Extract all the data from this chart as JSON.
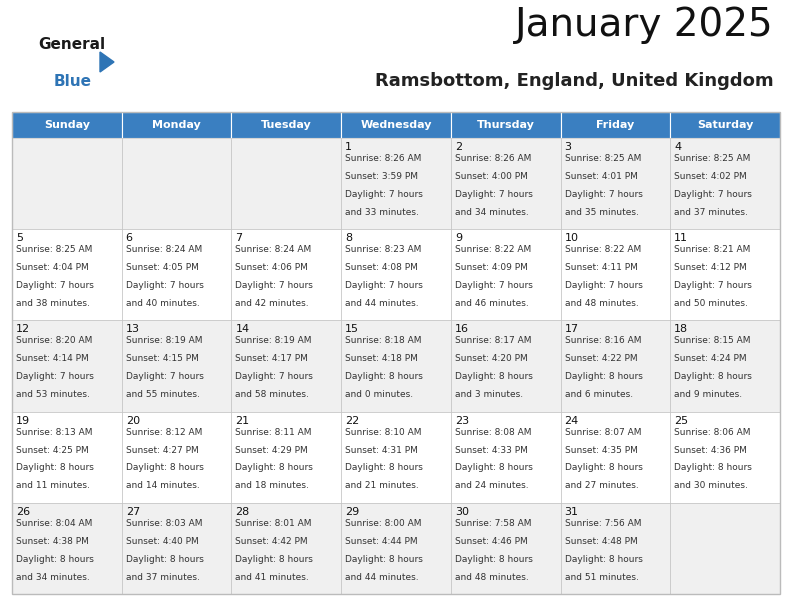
{
  "title": "January 2025",
  "subtitle": "Ramsbottom, England, United Kingdom",
  "header_color": "#3a7fc1",
  "header_text_color": "#ffffff",
  "cell_bg_even": "#f0f0f0",
  "cell_bg_odd": "#ffffff",
  "border_color": "#bbbbbb",
  "days_of_week": [
    "Sunday",
    "Monday",
    "Tuesday",
    "Wednesday",
    "Thursday",
    "Friday",
    "Saturday"
  ],
  "weeks": [
    {
      "days": [
        {
          "date": "",
          "sunrise": "",
          "sunset": "",
          "daylight": ""
        },
        {
          "date": "",
          "sunrise": "",
          "sunset": "",
          "daylight": ""
        },
        {
          "date": "",
          "sunrise": "",
          "sunset": "",
          "daylight": ""
        },
        {
          "date": "1",
          "sunrise": "8:26 AM",
          "sunset": "3:59 PM",
          "daylight": "7 hours and 33 minutes."
        },
        {
          "date": "2",
          "sunrise": "8:26 AM",
          "sunset": "4:00 PM",
          "daylight": "7 hours and 34 minutes."
        },
        {
          "date": "3",
          "sunrise": "8:25 AM",
          "sunset": "4:01 PM",
          "daylight": "7 hours and 35 minutes."
        },
        {
          "date": "4",
          "sunrise": "8:25 AM",
          "sunset": "4:02 PM",
          "daylight": "7 hours and 37 minutes."
        }
      ]
    },
    {
      "days": [
        {
          "date": "5",
          "sunrise": "8:25 AM",
          "sunset": "4:04 PM",
          "daylight": "7 hours and 38 minutes."
        },
        {
          "date": "6",
          "sunrise": "8:24 AM",
          "sunset": "4:05 PM",
          "daylight": "7 hours and 40 minutes."
        },
        {
          "date": "7",
          "sunrise": "8:24 AM",
          "sunset": "4:06 PM",
          "daylight": "7 hours and 42 minutes."
        },
        {
          "date": "8",
          "sunrise": "8:23 AM",
          "sunset": "4:08 PM",
          "daylight": "7 hours and 44 minutes."
        },
        {
          "date": "9",
          "sunrise": "8:22 AM",
          "sunset": "4:09 PM",
          "daylight": "7 hours and 46 minutes."
        },
        {
          "date": "10",
          "sunrise": "8:22 AM",
          "sunset": "4:11 PM",
          "daylight": "7 hours and 48 minutes."
        },
        {
          "date": "11",
          "sunrise": "8:21 AM",
          "sunset": "4:12 PM",
          "daylight": "7 hours and 50 minutes."
        }
      ]
    },
    {
      "days": [
        {
          "date": "12",
          "sunrise": "8:20 AM",
          "sunset": "4:14 PM",
          "daylight": "7 hours and 53 minutes."
        },
        {
          "date": "13",
          "sunrise": "8:19 AM",
          "sunset": "4:15 PM",
          "daylight": "7 hours and 55 minutes."
        },
        {
          "date": "14",
          "sunrise": "8:19 AM",
          "sunset": "4:17 PM",
          "daylight": "7 hours and 58 minutes."
        },
        {
          "date": "15",
          "sunrise": "8:18 AM",
          "sunset": "4:18 PM",
          "daylight": "8 hours and 0 minutes."
        },
        {
          "date": "16",
          "sunrise": "8:17 AM",
          "sunset": "4:20 PM",
          "daylight": "8 hours and 3 minutes."
        },
        {
          "date": "17",
          "sunrise": "8:16 AM",
          "sunset": "4:22 PM",
          "daylight": "8 hours and 6 minutes."
        },
        {
          "date": "18",
          "sunrise": "8:15 AM",
          "sunset": "4:24 PM",
          "daylight": "8 hours and 9 minutes."
        }
      ]
    },
    {
      "days": [
        {
          "date": "19",
          "sunrise": "8:13 AM",
          "sunset": "4:25 PM",
          "daylight": "8 hours and 11 minutes."
        },
        {
          "date": "20",
          "sunrise": "8:12 AM",
          "sunset": "4:27 PM",
          "daylight": "8 hours and 14 minutes."
        },
        {
          "date": "21",
          "sunrise": "8:11 AM",
          "sunset": "4:29 PM",
          "daylight": "8 hours and 18 minutes."
        },
        {
          "date": "22",
          "sunrise": "8:10 AM",
          "sunset": "4:31 PM",
          "daylight": "8 hours and 21 minutes."
        },
        {
          "date": "23",
          "sunrise": "8:08 AM",
          "sunset": "4:33 PM",
          "daylight": "8 hours and 24 minutes."
        },
        {
          "date": "24",
          "sunrise": "8:07 AM",
          "sunset": "4:35 PM",
          "daylight": "8 hours and 27 minutes."
        },
        {
          "date": "25",
          "sunrise": "8:06 AM",
          "sunset": "4:36 PM",
          "daylight": "8 hours and 30 minutes."
        }
      ]
    },
    {
      "days": [
        {
          "date": "26",
          "sunrise": "8:04 AM",
          "sunset": "4:38 PM",
          "daylight": "8 hours and 34 minutes."
        },
        {
          "date": "27",
          "sunrise": "8:03 AM",
          "sunset": "4:40 PM",
          "daylight": "8 hours and 37 minutes."
        },
        {
          "date": "28",
          "sunrise": "8:01 AM",
          "sunset": "4:42 PM",
          "daylight": "8 hours and 41 minutes."
        },
        {
          "date": "29",
          "sunrise": "8:00 AM",
          "sunset": "4:44 PM",
          "daylight": "8 hours and 44 minutes."
        },
        {
          "date": "30",
          "sunrise": "7:58 AM",
          "sunset": "4:46 PM",
          "daylight": "8 hours and 48 minutes."
        },
        {
          "date": "31",
          "sunrise": "7:56 AM",
          "sunset": "4:48 PM",
          "daylight": "8 hours and 51 minutes."
        },
        {
          "date": "",
          "sunrise": "",
          "sunset": "",
          "daylight": ""
        }
      ]
    }
  ],
  "logo_general_color": "#1a1a1a",
  "logo_blue_color": "#2e74b5",
  "logo_triangle_color": "#2e74b5",
  "title_fontsize": 28,
  "subtitle_fontsize": 13,
  "header_fontsize": 8,
  "date_fontsize": 8,
  "cell_fontsize": 6.5
}
